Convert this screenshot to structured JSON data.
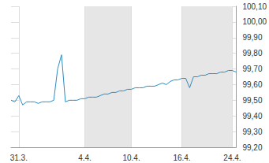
{
  "chart_data": {
    "type": "line",
    "color": "#2b8cc4",
    "grid": true,
    "categories": [
      null,
      null,
      "31.3.",
      null,
      null,
      null,
      null,
      null,
      null,
      null,
      null,
      null,
      null,
      null,
      null,
      null,
      null,
      null,
      null,
      "4.4.",
      null,
      null,
      null,
      null,
      null,
      null,
      null,
      null,
      null,
      null,
      null,
      "10.4.",
      null,
      null,
      null,
      null,
      null,
      null,
      null,
      null,
      null,
      null,
      null,
      null,
      "16.4.",
      null,
      null,
      null,
      null,
      null,
      null,
      null,
      null,
      null,
      null,
      null,
      null,
      "24.4.",
      null
    ],
    "values": [
      99.5,
      99.49,
      99.53,
      99.47,
      99.49,
      99.49,
      99.49,
      99.48,
      99.49,
      99.49,
      99.49,
      99.5,
      99.7,
      99.79,
      99.49,
      99.5,
      99.5,
      99.5,
      99.51,
      99.51,
      99.52,
      99.52,
      99.52,
      99.53,
      99.54,
      99.54,
      99.55,
      99.55,
      99.56,
      99.56,
      99.57,
      99.57,
      99.58,
      99.58,
      99.58,
      99.59,
      99.59,
      99.59,
      99.6,
      99.61,
      99.6,
      99.62,
      99.63,
      99.63,
      99.64,
      99.64,
      99.58,
      99.65,
      99.65,
      99.66,
      99.66,
      99.67,
      99.67,
      99.67,
      99.68,
      99.68,
      99.69,
      99.69,
      99.68
    ],
    "ylim": [
      99.2,
      100.1
    ],
    "yticks": [
      {
        "value": 99.2,
        "label": "99,20"
      },
      {
        "value": 99.3,
        "label": "99,30"
      },
      {
        "value": 99.4,
        "label": "99,40"
      },
      {
        "value": 99.5,
        "label": "99,50"
      },
      {
        "value": 99.6,
        "label": "99,60"
      },
      {
        "value": 99.7,
        "label": "99,70"
      },
      {
        "value": 99.8,
        "label": "99,80"
      },
      {
        "value": 99.9,
        "label": "99,90"
      },
      {
        "value": 100.0,
        "label": "100,00"
      },
      {
        "value": 100.1,
        "label": "100,10"
      }
    ]
  }
}
